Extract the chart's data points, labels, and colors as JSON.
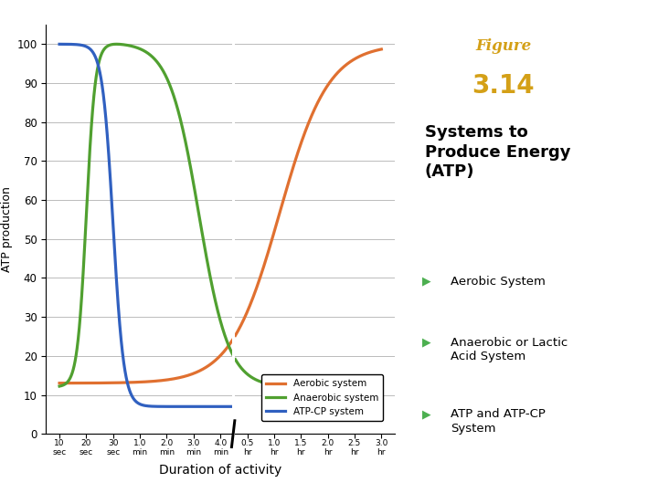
{
  "title": "Systems to\nProduce Energy\n(ATP)",
  "figure_label": "Figure",
  "figure_number": "3.14",
  "ylabel": "ATP production",
  "xlabel": "Duration of activity",
  "yticks": [
    0,
    10,
    20,
    30,
    40,
    50,
    60,
    70,
    80,
    90,
    100
  ],
  "x_tick_labels_left": [
    "10\nsec",
    "20\nsec",
    "30\nsec",
    "1.0\nmin",
    "2.0\nmin",
    "3.0\nmin",
    "4.0\nmin"
  ],
  "x_tick_labels_right": [
    "0.5\nhr",
    "1.0\nhr",
    "1.5\nhr",
    "2.0\nhr",
    "2.5\nhr",
    "3.0\nhr"
  ],
  "legend_labels": [
    "Aerobic system",
    "Anaerobic system",
    "ATP-CP system"
  ],
  "bullet_items": [
    "Aerobic System",
    "Anaerobic or Lactic\nAcid System",
    "ATP and ATP-CP\nSystem"
  ],
  "aerobic_color": "#E07030",
  "anaerobic_color": "#50A030",
  "atpcp_color": "#3060C0",
  "bg_color": "#FFFFFF",
  "green_color": "#2E7D32",
  "gold_color": "#D4A017",
  "bullet_color": "#4CAF50",
  "grid_color": "#BBBBBB",
  "fig_label": "Figure",
  "fig_number": "3.14"
}
